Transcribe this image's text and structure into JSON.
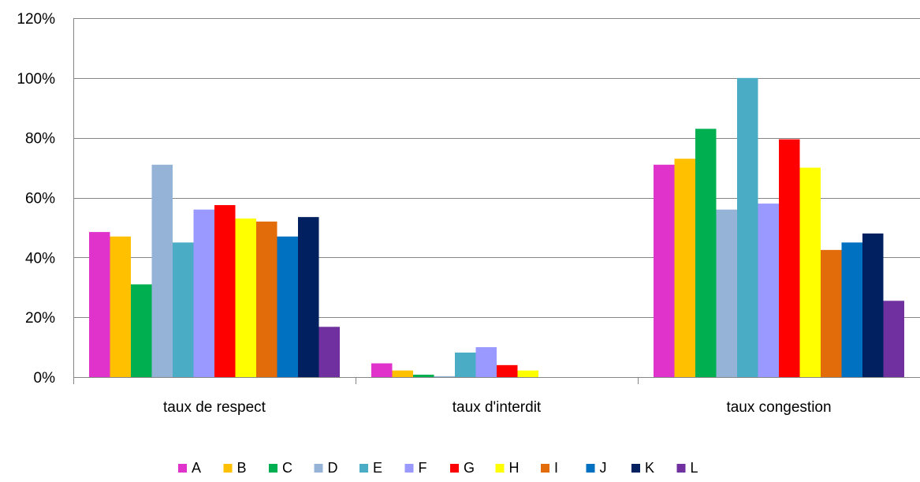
{
  "chart_data": {
    "type": "bar",
    "title": "",
    "xlabel": "",
    "ylabel": "",
    "ylim": [
      0,
      1.2
    ],
    "y_ticks": [
      0,
      0.2,
      0.4,
      0.6,
      0.8,
      1.0,
      1.2
    ],
    "y_tick_labels": [
      "0%",
      "20%",
      "40%",
      "60%",
      "80%",
      "100%",
      "120%"
    ],
    "grid": true,
    "legend_position": "bottom",
    "categories": [
      "taux de respect",
      "taux d'interdit",
      "taux congestion"
    ],
    "series": [
      {
        "name": "A",
        "color": "#E033CC",
        "values": [
          0.485,
          0.046,
          0.71
        ]
      },
      {
        "name": "B",
        "color": "#FFC000",
        "values": [
          0.47,
          0.022,
          0.73
        ]
      },
      {
        "name": "C",
        "color": "#00B050",
        "values": [
          0.31,
          0.008,
          0.83
        ]
      },
      {
        "name": "D",
        "color": "#95B3D7",
        "values": [
          0.71,
          0.003,
          0.56
        ]
      },
      {
        "name": "E",
        "color": "#4BACC6",
        "values": [
          0.45,
          0.082,
          1.0
        ]
      },
      {
        "name": "F",
        "color": "#9999FF",
        "values": [
          0.56,
          0.1,
          0.58
        ]
      },
      {
        "name": "G",
        "color": "#FF0000",
        "values": [
          0.575,
          0.04,
          0.795
        ]
      },
      {
        "name": "H",
        "color": "#FFFF00",
        "values": [
          0.53,
          0.022,
          0.7
        ]
      },
      {
        "name": "I",
        "color": "#E36C0A",
        "values": [
          0.52,
          0.0,
          0.425
        ]
      },
      {
        "name": "J",
        "color": "#0070C0",
        "values": [
          0.47,
          0.0,
          0.45
        ]
      },
      {
        "name": "K",
        "color": "#002060",
        "values": [
          0.535,
          0.0,
          0.48
        ]
      },
      {
        "name": "L",
        "color": "#7030A0",
        "values": [
          0.168,
          0.0,
          0.255
        ]
      }
    ]
  }
}
